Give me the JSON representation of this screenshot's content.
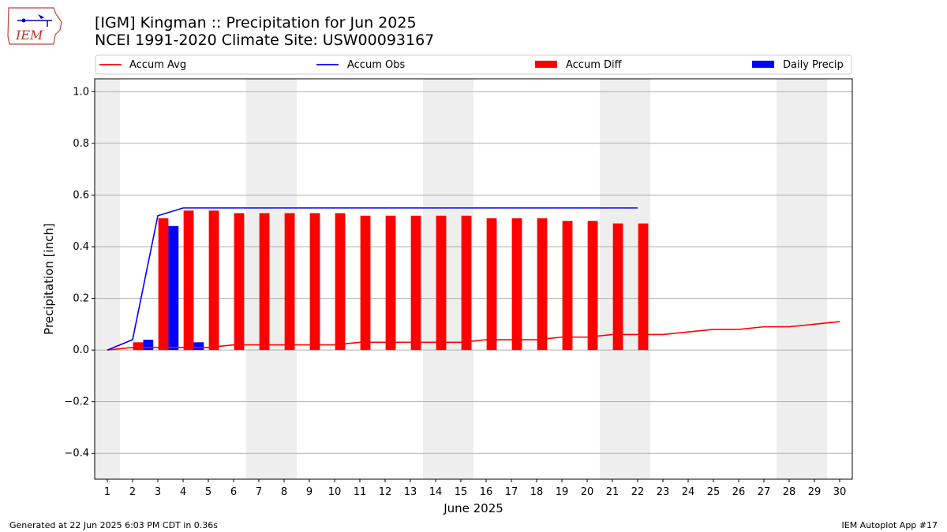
{
  "header": {
    "title_line1": "[IGM] Kingman :: Precipitation for Jun 2025",
    "title_line2": "NCEI 1991-2020 Climate Site: USW00093167",
    "logo_text": "IEM"
  },
  "footer": {
    "left": "Generated at 22 Jun 2025 6:03 PM CDT in 0.36s",
    "right": "IEM Autoplot App #17"
  },
  "colors": {
    "accum_avg": "#ff0000",
    "accum_obs": "#0000ff",
    "accum_diff": "#ff0000",
    "daily_precip": "#0000ff",
    "weekend_shade": "#eeeeee",
    "grid": "#b0b0b0"
  },
  "chart_data": {
    "type": "bar",
    "xlabel": "June 2025",
    "ylabel": "Precipitation [inch]",
    "xlim": [
      0.5,
      30.5
    ],
    "ylim": [
      -0.5,
      1.05
    ],
    "yticks": [
      -0.4,
      -0.2,
      0.0,
      0.2,
      0.4,
      0.6,
      0.8,
      1.0
    ],
    "ytick_labels": [
      "−0.4",
      "−0.2",
      "0.0",
      "0.2",
      "0.4",
      "0.6",
      "0.8",
      "1.0"
    ],
    "xticks": [
      1,
      2,
      3,
      4,
      5,
      6,
      7,
      8,
      9,
      10,
      11,
      12,
      13,
      14,
      15,
      16,
      17,
      18,
      19,
      20,
      21,
      22,
      23,
      24,
      25,
      26,
      27,
      28,
      29,
      30
    ],
    "grid": "horizontal",
    "legend_placement": "top",
    "weekend_days": [
      1,
      7,
      8,
      14,
      15,
      21,
      22,
      28,
      29
    ],
    "legend": [
      "Accum Avg",
      "Accum Obs",
      "Accum Diff",
      "Daily Precip"
    ],
    "series": [
      {
        "name": "Accum Avg",
        "kind": "line",
        "x": [
          1,
          2,
          3,
          4,
          5,
          6,
          7,
          8,
          9,
          10,
          11,
          12,
          13,
          14,
          15,
          16,
          17,
          18,
          19,
          20,
          21,
          22,
          23,
          24,
          25,
          26,
          27,
          28,
          29,
          30
        ],
        "values": [
          0.0,
          0.01,
          0.01,
          0.01,
          0.01,
          0.02,
          0.02,
          0.02,
          0.02,
          0.02,
          0.03,
          0.03,
          0.03,
          0.03,
          0.03,
          0.04,
          0.04,
          0.04,
          0.05,
          0.05,
          0.06,
          0.06,
          0.06,
          0.07,
          0.08,
          0.08,
          0.09,
          0.09,
          0.1,
          0.11
        ]
      },
      {
        "name": "Accum Obs",
        "kind": "line",
        "x": [
          1,
          2,
          3,
          4,
          5,
          6,
          7,
          8,
          9,
          10,
          11,
          12,
          13,
          14,
          15,
          16,
          17,
          18,
          19,
          20,
          21,
          22
        ],
        "values": [
          0.0,
          0.04,
          0.52,
          0.55,
          0.55,
          0.55,
          0.55,
          0.55,
          0.55,
          0.55,
          0.55,
          0.55,
          0.55,
          0.55,
          0.55,
          0.55,
          0.55,
          0.55,
          0.55,
          0.55,
          0.55,
          0.55
        ]
      },
      {
        "name": "Accum Diff",
        "kind": "bar",
        "x": [
          1,
          2,
          3,
          4,
          5,
          6,
          7,
          8,
          9,
          10,
          11,
          12,
          13,
          14,
          15,
          16,
          17,
          18,
          19,
          20,
          21,
          22
        ],
        "values": [
          0.0,
          0.03,
          0.51,
          0.54,
          0.54,
          0.53,
          0.53,
          0.53,
          0.53,
          0.53,
          0.52,
          0.52,
          0.52,
          0.52,
          0.52,
          0.51,
          0.51,
          0.51,
          0.5,
          0.5,
          0.49,
          0.49
        ]
      },
      {
        "name": "Daily Precip",
        "kind": "bar",
        "x": [
          2,
          3,
          4
        ],
        "values": [
          0.04,
          0.48,
          0.03
        ]
      }
    ]
  }
}
